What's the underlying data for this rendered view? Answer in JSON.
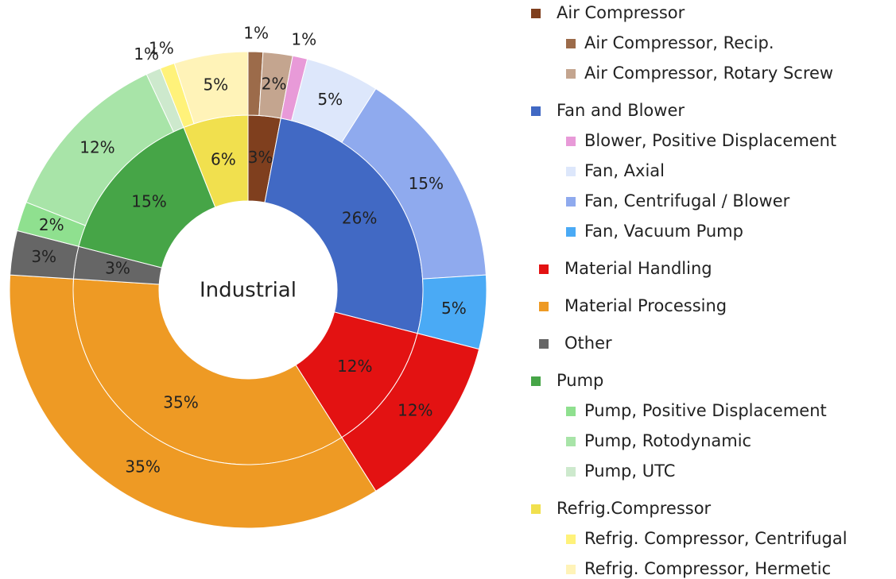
{
  "chart_data": {
    "type": "sunburst",
    "center_label": "Industrial",
    "groups": [
      {
        "name": "Air Compressor",
        "color": "#7f3f1e",
        "value": 3,
        "value_label": "3%",
        "children": [
          {
            "name": "Air Compressor, Recip.",
            "color": "#9c6b4a",
            "value": 1,
            "value_label": "1%"
          },
          {
            "name": "Air Compressor, Rotary Screw",
            "color": "#c4a58f",
            "value": 2,
            "value_label": "2%"
          }
        ]
      },
      {
        "name": "Fan and Blower",
        "color": "#4169c4",
        "value": 26,
        "value_label": "26%",
        "children": [
          {
            "name": "Blower, Positive Displacement",
            "color": "#e89ad8",
            "value": 1,
            "value_label": "1%"
          },
          {
            "name": "Fan, Axial",
            "color": "#dde7fb",
            "value": 5,
            "value_label": "5%"
          },
          {
            "name": "Fan, Centrifugal / Blower",
            "color": "#8faaee",
            "value": 15,
            "value_label": "15%"
          },
          {
            "name": "Fan, Vacuum Pump",
            "color": "#4aaaf5",
            "value": 5,
            "value_label": "5%"
          }
        ]
      },
      {
        "name": "Material Handling",
        "color": "#e31212",
        "value": 12,
        "value_label": "12%",
        "children": []
      },
      {
        "name": "Material Processing",
        "color": "#ee9a24",
        "value": 35,
        "value_label": "35%",
        "children": []
      },
      {
        "name": "Other",
        "color": "#666666",
        "value": 3,
        "value_label": "3%",
        "children": []
      },
      {
        "name": "Pump",
        "color": "#46a547",
        "value": 15,
        "value_label": "15%",
        "children": [
          {
            "name": "Pump, Positive Displacement",
            "color": "#8fe08f",
            "value": 2,
            "value_label": "2%"
          },
          {
            "name": "Pump, Rotodynamic",
            "color": "#a8e4a8",
            "value": 12,
            "value_label": "12%"
          },
          {
            "name": "Pump, UTC",
            "color": "#cde9cd",
            "value": 1,
            "value_label": "1%"
          }
        ]
      },
      {
        "name": "Refrig.Compressor",
        "color": "#f1e04e",
        "value": 6,
        "value_label": "6%",
        "children": [
          {
            "name": "Refrig. Compressor, Centrifugal",
            "color": "#fff27a",
            "value": 1,
            "value_label": "1%"
          },
          {
            "name": "Refrig. Compressor, Hermetic",
            "color": "#fff3b8",
            "value": 5,
            "value_label": "5%"
          }
        ]
      }
    ]
  }
}
